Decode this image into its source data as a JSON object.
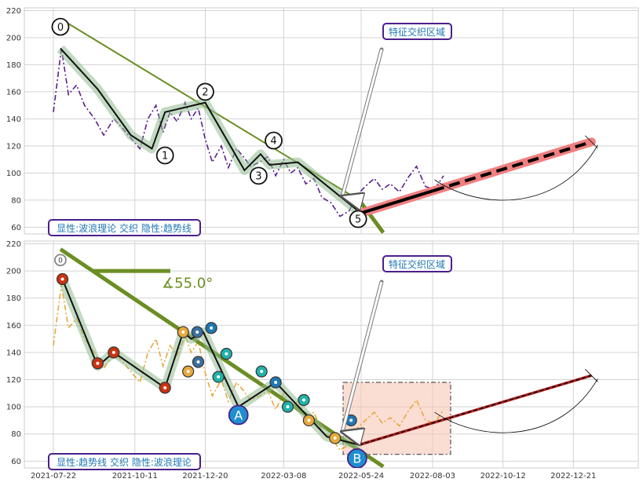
{
  "chart_data": [
    {
      "type": "line",
      "panel": "top",
      "ylim": [
        55,
        222
      ],
      "yticks": [
        60,
        80,
        100,
        120,
        140,
        160,
        180,
        200,
        220
      ],
      "xticks": [
        "2021-07-22",
        "2021-10-11",
        "2021-12-20",
        "2022-03-08",
        "2022-05-24",
        "2022-08-03",
        "2022-10-12",
        "2022-12-21"
      ],
      "grid": true,
      "series": [
        {
          "style": "purple-dashdot",
          "color": "#5b1f8c",
          "x": [
            "2021-07-22",
            "2021-07-30",
            "2021-08-06",
            "2021-08-14",
            "2021-08-22",
            "2021-09-01",
            "2021-09-10",
            "2021-09-20",
            "2021-09-30",
            "2021-10-08",
            "2021-10-16",
            "2021-10-24",
            "2021-11-01",
            "2021-11-08",
            "2021-11-15",
            "2021-11-22",
            "2021-11-30",
            "2021-12-06",
            "2021-12-13",
            "2021-12-20",
            "2021-12-27",
            "2022-01-05",
            "2022-01-12",
            "2022-01-20",
            "2022-01-27",
            "2022-02-03",
            "2022-02-12",
            "2022-02-20",
            "2022-02-28",
            "2022-03-08",
            "2022-03-15",
            "2022-03-22",
            "2022-03-30",
            "2022-04-07",
            "2022-04-15",
            "2022-04-24",
            "2022-05-03",
            "2022-05-12",
            "2022-05-20",
            "2022-05-28",
            "2022-06-06",
            "2022-06-14",
            "2022-06-22",
            "2022-07-01",
            "2022-07-10",
            "2022-07-18",
            "2022-07-27",
            "2022-08-05",
            "2022-08-14"
          ],
          "values": [
            145,
            192,
            158,
            165,
            150,
            140,
            128,
            140,
            132,
            125,
            118,
            140,
            150,
            130,
            145,
            138,
            152,
            140,
            148,
            125,
            108,
            120,
            104,
            118,
            112,
            105,
            108,
            112,
            98,
            110,
            100,
            104,
            92,
            96,
            82,
            78,
            68,
            72,
            84,
            90,
            96,
            88,
            92,
            86,
            97,
            105,
            90,
            88,
            98
          ]
        },
        {
          "style": "trendline",
          "color": "#6b8e23",
          "x": [
            "2021-07-31",
            "2022-05-22",
            "2022-06-15"
          ],
          "values": [
            213,
            80,
            56
          ]
        },
        {
          "style": "wave",
          "color": "#111111",
          "x": [
            "2021-07-29",
            "2021-09-04",
            "2021-10-07",
            "2021-10-28",
            "2021-11-10",
            "2021-12-20",
            "2022-01-28",
            "2022-02-13",
            "2022-02-22",
            "2022-03-22",
            "2022-05-21"
          ],
          "values": [
            192,
            162,
            128,
            118,
            145,
            152,
            102,
            114,
            106,
            108,
            72
          ]
        },
        {
          "style": "forecast",
          "color": "#f08080",
          "x": [
            "2022-05-22",
            "2023-01-08"
          ],
          "values": [
            70,
            123
          ]
        }
      ],
      "annotations": [
        {
          "label": "0",
          "x": "2021-07-29",
          "y": 208
        },
        {
          "label": "1",
          "x": "2021-11-10",
          "y": 113
        },
        {
          "label": "2",
          "x": "2021-12-20",
          "y": 160
        },
        {
          "label": "3",
          "x": "2022-02-11",
          "y": 98
        },
        {
          "label": "4",
          "x": "2022-02-26",
          "y": 124
        },
        {
          "label": "5",
          "x": "2022-05-21",
          "y": 66
        }
      ],
      "callout": "特征交织区域",
      "legend_text": "显性:波浪理论 交织 隐性:趋势线"
    },
    {
      "type": "line",
      "panel": "bottom",
      "ylim": [
        55,
        222
      ],
      "yticks": [
        60,
        80,
        100,
        120,
        140,
        160,
        180,
        200,
        220
      ],
      "xticks": [
        "2021-07-22",
        "2021-10-11",
        "2021-12-20",
        "2022-03-08",
        "2022-05-24",
        "2022-08-03",
        "2022-10-12",
        "2022-12-21"
      ],
      "grid": true,
      "series": [
        {
          "style": "orange-dashdot",
          "color": "#e8a93d",
          "x": [
            "2021-07-22",
            "2021-07-30",
            "2021-08-06",
            "2021-08-14",
            "2021-08-22",
            "2021-09-01",
            "2021-09-10",
            "2021-09-20",
            "2021-09-30",
            "2021-10-08",
            "2021-10-16",
            "2021-10-24",
            "2021-11-01",
            "2021-11-08",
            "2021-11-15",
            "2021-11-22",
            "2021-11-30",
            "2021-12-06",
            "2021-12-13",
            "2021-12-20",
            "2021-12-27",
            "2022-01-05",
            "2022-01-12",
            "2022-01-20",
            "2022-01-27",
            "2022-02-03",
            "2022-02-12",
            "2022-02-20",
            "2022-02-28",
            "2022-03-08",
            "2022-03-15",
            "2022-03-22",
            "2022-03-30",
            "2022-04-07",
            "2022-04-15",
            "2022-04-24",
            "2022-05-03",
            "2022-05-12",
            "2022-05-20",
            "2022-05-28",
            "2022-06-06",
            "2022-06-14",
            "2022-06-22",
            "2022-07-01",
            "2022-07-10",
            "2022-07-18",
            "2022-07-27",
            "2022-08-05",
            "2022-08-14"
          ],
          "values": [
            145,
            190,
            158,
            165,
            150,
            140,
            128,
            140,
            132,
            125,
            118,
            140,
            150,
            130,
            145,
            138,
            152,
            140,
            148,
            125,
            108,
            120,
            104,
            118,
            112,
            105,
            108,
            112,
            98,
            110,
            100,
            104,
            92,
            96,
            82,
            78,
            68,
            72,
            84,
            90,
            96,
            88,
            92,
            86,
            97,
            105,
            90,
            88,
            98
          ]
        },
        {
          "style": "trendline",
          "color": "#6b8e23",
          "x": [
            "2021-07-29",
            "2022-06-15"
          ],
          "values": [
            216,
            56
          ]
        },
        {
          "style": "wave",
          "color": "#111111",
          "x": [
            "2021-07-31",
            "2021-09-04",
            "2021-09-20",
            "2021-11-10",
            "2021-11-28",
            "2021-12-06",
            "2021-12-18",
            "2022-01-22",
            "2022-02-28",
            "2022-04-20",
            "2022-05-22"
          ],
          "values": [
            194,
            130,
            140,
            114,
            155,
            150,
            155,
            100,
            118,
            78,
            72
          ]
        },
        {
          "style": "forecast",
          "color": "#111111",
          "x": [
            "2022-05-22",
            "2023-01-08"
          ],
          "values": [
            72,
            123
          ]
        }
      ],
      "angle_label": "∡55.0°",
      "annotations": [
        {
          "label": "A",
          "x": "2022-01-22",
          "y": 94
        },
        {
          "label": "B",
          "x": "2022-05-20",
          "y": 62
        }
      ],
      "highlight_box": {
        "x": [
          "2022-05-24",
          "2022-08-21"
        ],
        "y": [
          65,
          118
        ]
      },
      "callout": "特征交织区域",
      "legend_text": "显性:趋势线 交织 隐性:波浪理论"
    }
  ]
}
